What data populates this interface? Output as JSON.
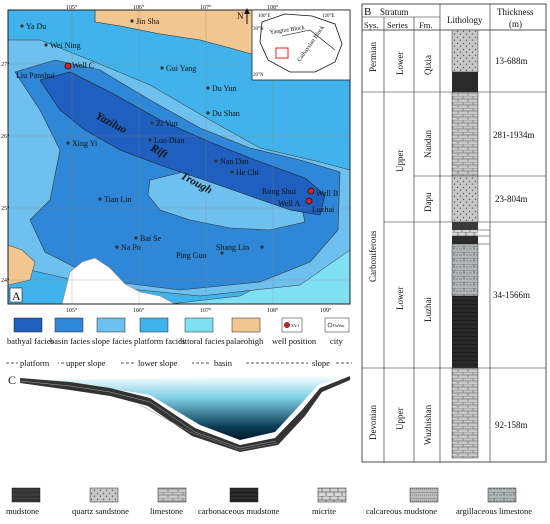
{
  "panel_labels": {
    "a": "A",
    "b": "B",
    "c": "C"
  },
  "map": {
    "north": "N",
    "trough_words": [
      "Yaziluo",
      "Rift",
      "Trough"
    ],
    "cities": [
      "Ya Du",
      "Jin Sha",
      "Wei Ning",
      "Liu Panshui",
      "Gui Yang",
      "Du Yun",
      "Zi Yun",
      "Du Shan",
      "Xing Yi",
      "Luo Dian",
      "Nan Dan",
      "He Chi",
      "Rong Shui",
      "Tian Lin",
      "Bai Se",
      "Na Po",
      "Shang Lin",
      "Ping Guo",
      "Luzhai"
    ],
    "wells": [
      "Well C",
      "Well B",
      "Well A"
    ],
    "lon_ticks": [
      "105°",
      "106°",
      "107°",
      "108°",
      "109°"
    ],
    "lat_ticks": [
      "27°",
      "26°",
      "25°",
      "24°"
    ],
    "inset": {
      "labels": [
        "100°E",
        "120°E",
        "30°N",
        "20°N",
        "Yangtze Block",
        "Cathaysian Block"
      ]
    }
  },
  "legend": {
    "items": [
      {
        "label": "bathyal facies",
        "color": "#1f5fbf"
      },
      {
        "label": "basin facies",
        "color": "#2f87d8"
      },
      {
        "label": "slope facies",
        "color": "#6ec0ee"
      },
      {
        "label": "platform facies",
        "color": "#41b3ec"
      },
      {
        "label": "littoral facies",
        "color": "#7fe0f4"
      },
      {
        "label": "palaeohigh",
        "color": "#f2c690"
      },
      {
        "label": "well position",
        "color": "#e02020"
      },
      {
        "label": "city",
        "color": "#888888"
      }
    ],
    "well_sample": "XY-1",
    "city_sample": "DuYun"
  },
  "profile": {
    "labels": [
      "platform",
      "upper slope",
      "lower slope",
      "basin",
      "slope"
    ]
  },
  "column": {
    "title": "Stratum",
    "headers": {
      "sys": "Sys.",
      "series": "Series",
      "fm": "Fm.",
      "lithology": "Lithology",
      "thickness": "Thickness",
      "thickness_unit": "(m)"
    },
    "systems": [
      "Permian",
      "Carboniferous",
      "Devonian"
    ],
    "series": [
      "Lower",
      "Upper",
      "Lower",
      "Upper"
    ],
    "formations": [
      "Qixia",
      "Nandan",
      "Dapu",
      "Luzhai",
      "Wuzhishan"
    ],
    "thickness": [
      "13-688m",
      "281-1934m",
      "23-804m",
      "34-1566m",
      "92-158m"
    ]
  },
  "lith_legend": [
    "mudstone",
    "quartz sandstone",
    "limestone",
    "carbonaceous mudstone",
    "micrite",
    "calcareous mudstone",
    "argillaceous limestone"
  ]
}
